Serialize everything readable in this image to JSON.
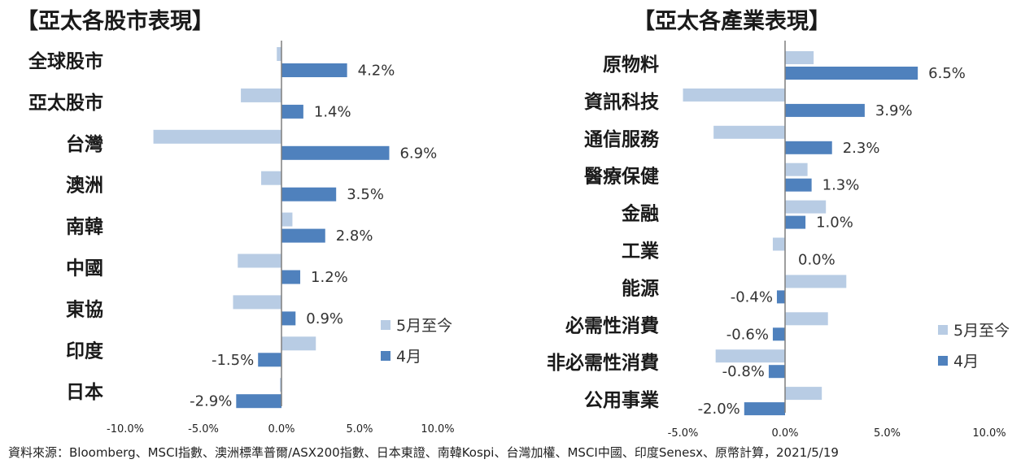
{
  "colors": {
    "may_to_date": "#b8cce4",
    "april": "#4f81bd",
    "axis": "#7f7f7f"
  },
  "chart_data": [
    {
      "type": "bar",
      "orientation": "horizontal",
      "title": "【亞太各股市表現】",
      "categories": [
        "全球股市",
        "亞太股市",
        "台灣",
        "澳洲",
        "南韓",
        "中國",
        "東協",
        "印度",
        "日本"
      ],
      "series": [
        {
          "name": "5月至今",
          "values": [
            -0.3,
            -2.6,
            -8.2,
            -1.3,
            0.7,
            -2.8,
            -3.1,
            2.2,
            -0.1
          ]
        },
        {
          "name": "4月",
          "values": [
            4.2,
            1.4,
            6.9,
            3.5,
            2.8,
            1.2,
            0.9,
            -1.5,
            -2.9
          ]
        }
      ],
      "data_labels": [
        "4.2%",
        "1.4%",
        "6.9%",
        "3.5%",
        "2.8%",
        "1.2%",
        "0.9%",
        "-1.5%",
        "-2.9%"
      ],
      "xlim": [
        -10,
        10
      ],
      "xticks": [
        "-10.0%",
        "-5.0%",
        "0.0%",
        "5.0%",
        "10.0%"
      ],
      "legend": "right"
    },
    {
      "type": "bar",
      "orientation": "horizontal",
      "title": "【亞太各產業表現】",
      "categories": [
        "原物料",
        "資訊科技",
        "通信服務",
        "醫療保健",
        "金融",
        "工業",
        "能源",
        "必需性消費",
        "非必需性消費",
        "公用事業"
      ],
      "series": [
        {
          "name": "5月至今",
          "values": [
            1.4,
            -5.0,
            -3.5,
            1.1,
            2.0,
            -0.6,
            3.0,
            2.1,
            -3.4,
            1.8
          ]
        },
        {
          "name": "4月",
          "values": [
            6.5,
            3.9,
            2.3,
            1.3,
            1.0,
            0.0,
            -0.4,
            -0.6,
            -0.8,
            -2.0
          ]
        }
      ],
      "data_labels": [
        "6.5%",
        "3.9%",
        "2.3%",
        "1.3%",
        "1.0%",
        "0.0%",
        "-0.4%",
        "-0.6%",
        "-0.8%",
        "-2.0%"
      ],
      "xlim": [
        -5,
        10
      ],
      "xticks": [
        "-5.0%",
        "0.0%",
        "5.0%",
        "10.0%"
      ],
      "legend": "right"
    }
  ],
  "source_note": "資料來源：Bloomberg、MSCI指數、澳洲標準普爾/ASX200指數、日本東證、南韓Kospi、台灣加權、MSCI中國、印度Senesx、原幣計算，2021/5/19"
}
